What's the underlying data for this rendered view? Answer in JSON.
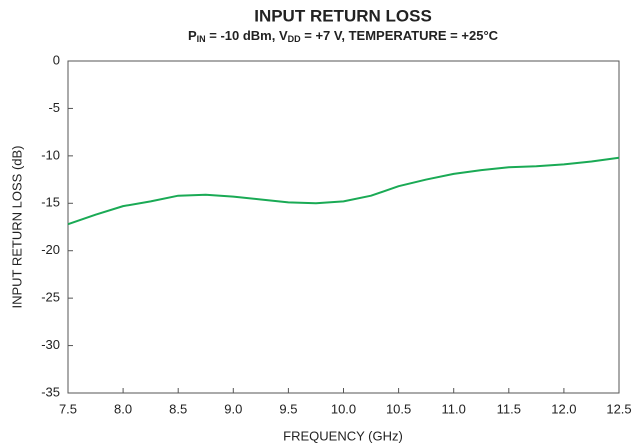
{
  "chart_data": {
    "type": "line",
    "title": "INPUT RETURN LOSS",
    "subtitle": [
      {
        "text": "P"
      },
      {
        "text": "IN",
        "sub": true
      },
      {
        "text": " = -10 dBm, V"
      },
      {
        "text": "DD",
        "sub": true
      },
      {
        "text": " = +7 V, TEMPERATURE = +25°C"
      }
    ],
    "x_label": "FREQUENCY (GHz)",
    "y_label": "INPUT RETURN LOSS (dB)",
    "x": [
      7.5,
      7.75,
      8.0,
      8.25,
      8.5,
      8.75,
      9.0,
      9.25,
      9.5,
      9.75,
      10.0,
      10.25,
      10.5,
      10.75,
      11.0,
      11.25,
      11.5,
      11.75,
      12.0,
      12.25,
      12.5
    ],
    "series": [
      {
        "color": "#1aaa55",
        "values": [
          -17.2,
          -16.2,
          -15.3,
          -14.8,
          -14.2,
          -14.1,
          -14.3,
          -14.6,
          -14.9,
          -15.0,
          -14.8,
          -14.2,
          -13.2,
          -12.5,
          -11.9,
          -11.5,
          -11.2,
          -11.1,
          -10.9,
          -10.6,
          -10.2
        ]
      }
    ],
    "xlim": [
      7.5,
      12.5
    ],
    "xticks": [
      {
        "value": 7.5,
        "label": "7.5"
      },
      {
        "value": 8,
        "label": "8.0"
      },
      {
        "value": 8.5,
        "label": "8.5"
      },
      {
        "value": 9,
        "label": "9.0"
      },
      {
        "value": 9.5,
        "label": "9.5"
      },
      {
        "value": 10,
        "label": "10.0"
      },
      {
        "value": 10.5,
        "label": "10.5"
      },
      {
        "value": 11,
        "label": "11.0"
      },
      {
        "value": 11.5,
        "label": "11.5"
      },
      {
        "value": 12,
        "label": "12.0"
      },
      {
        "value": 12.5,
        "label": "12.5"
      }
    ],
    "ylim": [
      -35,
      0
    ],
    "yticks": [
      0,
      -5,
      -10,
      -15,
      -20,
      -25,
      -30,
      -35
    ],
    "grid": false
  }
}
